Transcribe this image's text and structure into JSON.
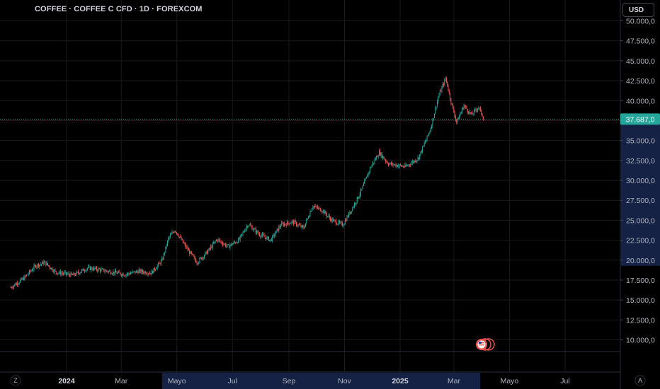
{
  "header": {
    "title": "COFFEE · COFFEE C CFD · 1D · FOREXCOM",
    "currency_button": "USD"
  },
  "colors": {
    "up": "#26a69a",
    "down": "#ef5350",
    "price_line": "#26a69a",
    "background": "#000000",
    "grid": "#1a1a1a",
    "highlight_axis": "#16244a"
  },
  "bottom_bar": {
    "left_button": "Z",
    "right_button": "A"
  },
  "chart_data": {
    "type": "candlestick",
    "title": "COFFEE · COFFEE C CFD · 1D · FOREXCOM",
    "currency": "USD",
    "last_price": 37687,
    "last_price_label": "37.687,0",
    "y_ticks": [
      10000,
      12500,
      15000,
      17500,
      20000,
      22500,
      25000,
      27500,
      30000,
      32500,
      35000,
      37500,
      40000,
      42500,
      45000,
      47500,
      50000
    ],
    "y_tick_labels": [
      "10.000,0",
      "12.500,0",
      "15.000,0",
      "17.500,0",
      "20.000,0",
      "22.500,0",
      "25.000,0",
      "27.500,0",
      "30.000,0",
      "32.500,0",
      "35.000,0",
      "37.500,0",
      "40.000,0",
      "42.500,0",
      "45.000,0",
      "47.500,0",
      "50.000,0"
    ],
    "y_highlight_range": [
      20000,
      37687
    ],
    "x_labels": [
      {
        "label": "2024",
        "date": "2024-01-01",
        "bold": true
      },
      {
        "label": "Mar",
        "date": "2024-03-01",
        "bold": false
      },
      {
        "label": "Mayo",
        "date": "2024-05-01",
        "bold": false
      },
      {
        "label": "Jul",
        "date": "2024-07-01",
        "bold": false
      },
      {
        "label": "Sep",
        "date": "2024-09-01",
        "bold": false
      },
      {
        "label": "Nov",
        "date": "2024-11-01",
        "bold": false
      },
      {
        "label": "2025",
        "date": "2025-01-01",
        "bold": true
      },
      {
        "label": "Mar",
        "date": "2025-03-01",
        "bold": false
      },
      {
        "label": "Mayo",
        "date": "2025-05-01",
        "bold": false
      },
      {
        "label": "Jul",
        "date": "2025-07-01",
        "bold": false
      }
    ],
    "x_highlight_range": [
      "2024-04-15",
      "2025-03-30"
    ],
    "close_series": [
      [
        "2023-11-01",
        16600
      ],
      [
        "2023-11-15",
        17700
      ],
      [
        "2023-11-28",
        19300
      ],
      [
        "2023-12-08",
        19700
      ],
      [
        "2023-12-20",
        18500
      ],
      [
        "2024-01-08",
        18100
      ],
      [
        "2024-01-24",
        19000
      ],
      [
        "2024-02-06",
        18800
      ],
      [
        "2024-02-20",
        18500
      ],
      [
        "2024-03-05",
        18200
      ],
      [
        "2024-03-20",
        18600
      ],
      [
        "2024-04-03",
        18400
      ],
      [
        "2024-04-15",
        20000
      ],
      [
        "2024-04-22",
        22800
      ],
      [
        "2024-04-29",
        23800
      ],
      [
        "2024-05-10",
        21800
      ],
      [
        "2024-05-23",
        19700
      ],
      [
        "2024-06-04",
        21100
      ],
      [
        "2024-06-14",
        22600
      ],
      [
        "2024-06-26",
        21700
      ],
      [
        "2024-07-08",
        22500
      ],
      [
        "2024-07-18",
        24500
      ],
      [
        "2024-07-31",
        23200
      ],
      [
        "2024-08-12",
        22500
      ],
      [
        "2024-08-23",
        24400
      ],
      [
        "2024-09-05",
        24800
      ],
      [
        "2024-09-17",
        24000
      ],
      [
        "2024-09-27",
        26800
      ],
      [
        "2024-10-08",
        26200
      ],
      [
        "2024-10-18",
        25000
      ],
      [
        "2024-10-30",
        24400
      ],
      [
        "2024-11-08",
        26200
      ],
      [
        "2024-11-19",
        28600
      ],
      [
        "2024-11-29",
        31500
      ],
      [
        "2024-12-09",
        33500
      ],
      [
        "2024-12-19",
        32100
      ],
      [
        "2025-01-07",
        31700
      ],
      [
        "2025-01-21",
        32800
      ],
      [
        "2025-02-03",
        36300
      ],
      [
        "2025-02-12",
        40500
      ],
      [
        "2025-02-20",
        42800
      ],
      [
        "2025-02-26",
        39800
      ],
      [
        "2025-03-04",
        37300
      ],
      [
        "2025-03-12",
        39400
      ],
      [
        "2025-03-20",
        38200
      ],
      [
        "2025-03-28",
        39200
      ],
      [
        "2025-04-03",
        37687
      ]
    ]
  }
}
